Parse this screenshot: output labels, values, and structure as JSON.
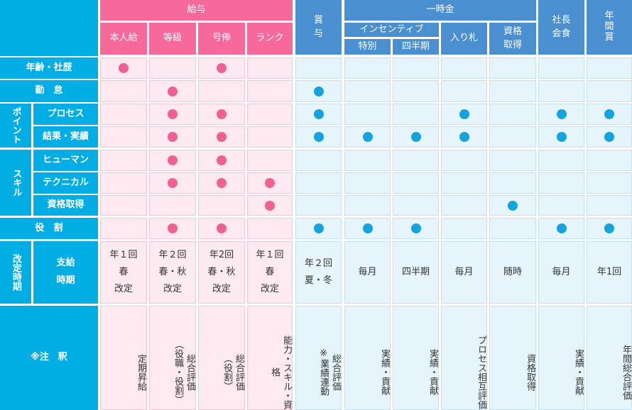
{
  "header": {
    "kyuyo": "給与",
    "items": [
      "本人給",
      "等級",
      "号俸",
      "ランク"
    ],
    "shoyo": "賞\n与",
    "ichijikin": "一時金",
    "incentive": "インセンティブ",
    "incentive_sub": [
      "特別",
      "四半期"
    ],
    "irefuda": "入り札",
    "shikaku": "資格\n取得",
    "shacho": "社長\n会食",
    "nenkan": "年\n間\n賞"
  },
  "rows": {
    "age": "年齢・社歴",
    "kintai": "勤　怠",
    "point": "ポイント",
    "process": "プロセス",
    "result": "結果・実績",
    "skill": "スキル",
    "human": "ヒューマン",
    "technical": "テクニカル",
    "qualification": "資格取得",
    "yakuwari": "役　割",
    "kaitei": "改定時期",
    "shikyu": "支給\n時期",
    "chushaku": "※注　釈"
  },
  "timing": [
    "年１回\n春\n改定",
    "年２回\n春・秋\n改定",
    "年2回\n春・秋\n改定",
    "年１回\n春\n改定",
    "年２回\n夏・冬",
    "毎月",
    "四半期",
    "毎月",
    "随時",
    "毎月",
    "年1回"
  ],
  "notes": [
    "定期昇給",
    "総合評価\n（役職・役割）",
    "総合評価\n（役割）",
    "能力・スキル・資格",
    "総合評価\n※業績連動",
    "実績・貢献",
    "実績・貢献",
    "プロセス相互評価",
    "資格取得",
    "実績・貢献",
    "年間総合評価"
  ],
  "marks": [
    [
      1,
      0,
      1,
      0,
      0,
      0,
      0,
      0,
      0,
      0,
      0
    ],
    [
      0,
      1,
      0,
      0,
      1,
      0,
      0,
      0,
      0,
      0,
      0
    ],
    [
      0,
      1,
      1,
      0,
      1,
      0,
      0,
      1,
      0,
      1,
      1
    ],
    [
      0,
      1,
      1,
      0,
      1,
      1,
      1,
      1,
      0,
      1,
      1
    ],
    [
      0,
      1,
      1,
      0,
      0,
      0,
      0,
      0,
      0,
      0,
      0
    ],
    [
      0,
      1,
      1,
      1,
      0,
      0,
      0,
      0,
      0,
      0,
      0
    ],
    [
      0,
      0,
      0,
      1,
      0,
      0,
      0,
      0,
      1,
      0,
      0
    ],
    [
      0,
      1,
      1,
      0,
      1,
      1,
      1,
      0,
      0,
      1,
      1
    ]
  ],
  "colors": {
    "pink_header": "#f7699a",
    "blue_header": "#4a8fcf",
    "cyan_header": "#00aee5",
    "pink_dot": "#f25f92",
    "blue_dot": "#13a3df"
  }
}
